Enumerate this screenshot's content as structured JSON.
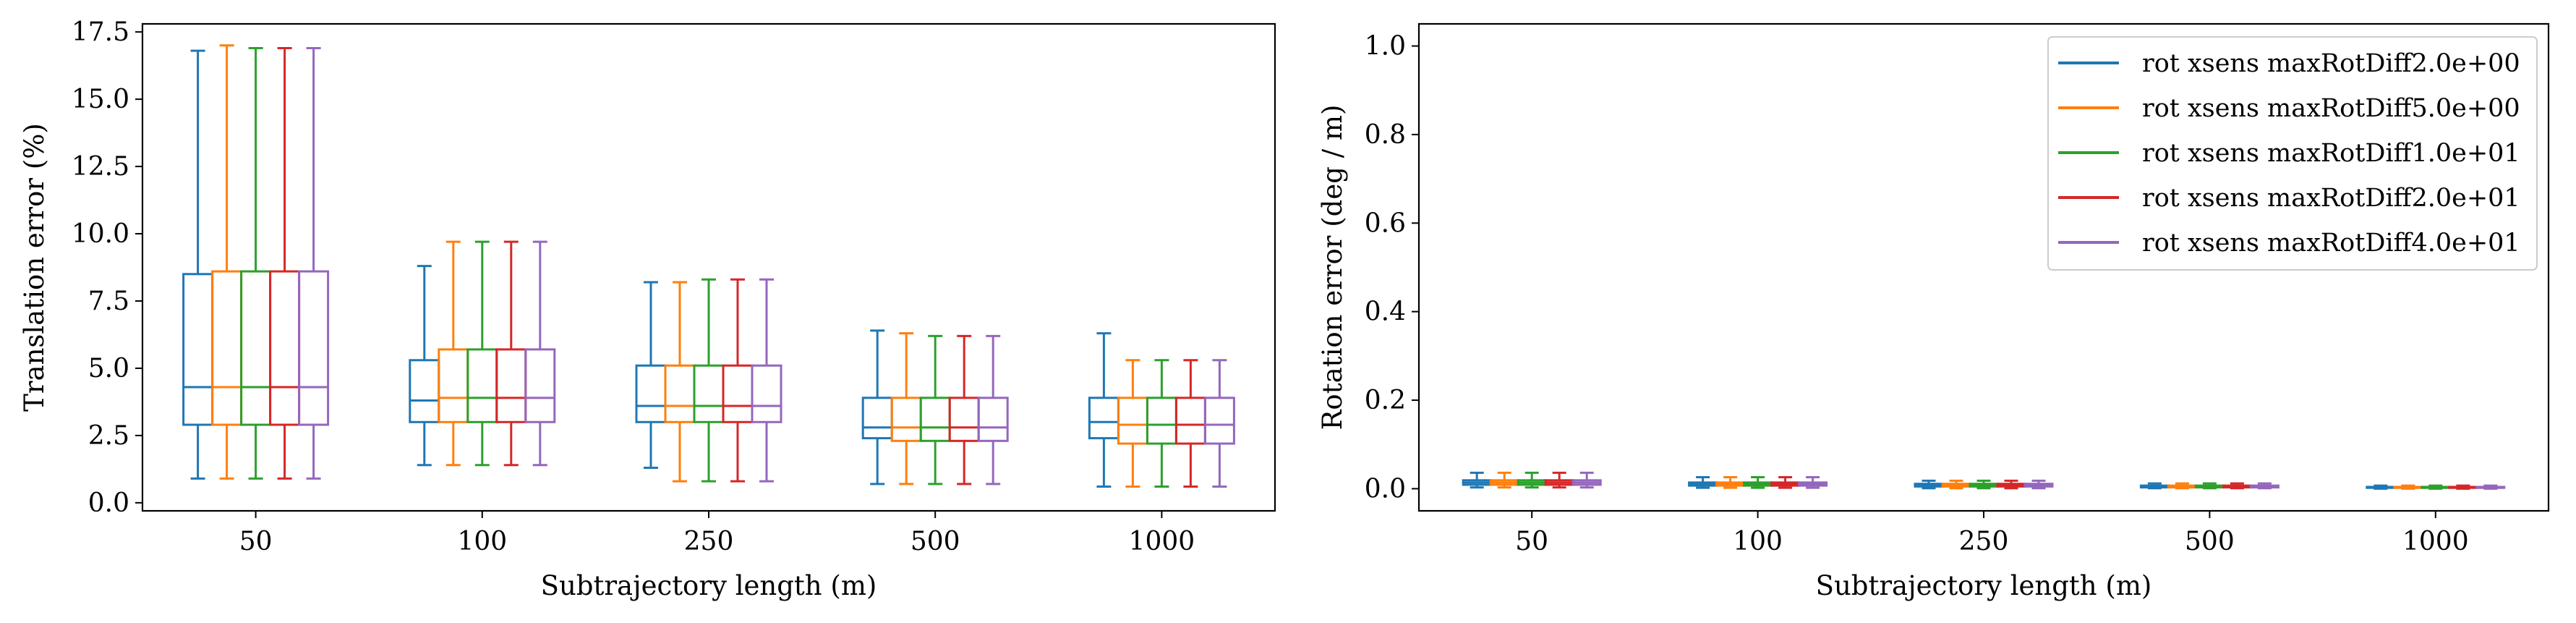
{
  "series": [
    {
      "name": "rot xsens maxRotDiff2.0e+00",
      "color": "#1f77b4"
    },
    {
      "name": "rot xsens maxRotDiff5.0e+00",
      "color": "#ff7f0e"
    },
    {
      "name": "rot xsens maxRotDiff1.0e+01",
      "color": "#2ca02c"
    },
    {
      "name": "rot xsens maxRotDiff2.0e+01",
      "color": "#d62728"
    },
    {
      "name": "rot xsens maxRotDiff4.0e+01",
      "color": "#9467bd"
    }
  ],
  "chart_data": [
    {
      "type": "box",
      "xlabel": "Subtrajectory length (m)",
      "ylabel": "Translation error (%)",
      "ylim": [
        -0.3,
        17.8
      ],
      "yticks": [
        0.0,
        2.5,
        5.0,
        7.5,
        10.0,
        12.5,
        15.0,
        17.5
      ],
      "ytick_labels": [
        "0.0",
        "2.5",
        "5.0",
        "7.5",
        "10.0",
        "12.5",
        "15.0",
        "17.5"
      ],
      "categories": [
        "50",
        "100",
        "250",
        "500",
        "1000"
      ],
      "grid": false,
      "boxes": [
        [
          [
            0.9,
            2.9,
            4.3,
            8.5,
            16.8
          ],
          [
            0.9,
            2.9,
            4.3,
            8.6,
            17.0
          ],
          [
            0.9,
            2.9,
            4.3,
            8.6,
            16.9
          ],
          [
            0.9,
            2.9,
            4.3,
            8.6,
            16.9
          ],
          [
            0.9,
            2.9,
            4.3,
            8.6,
            16.9
          ]
        ],
        [
          [
            1.4,
            3.0,
            3.8,
            5.3,
            8.8
          ],
          [
            1.4,
            3.0,
            3.9,
            5.7,
            9.7
          ],
          [
            1.4,
            3.0,
            3.9,
            5.7,
            9.7
          ],
          [
            1.4,
            3.0,
            3.9,
            5.7,
            9.7
          ],
          [
            1.4,
            3.0,
            3.9,
            5.7,
            9.7
          ]
        ],
        [
          [
            1.3,
            3.0,
            3.6,
            5.1,
            8.2
          ],
          [
            0.8,
            3.0,
            3.6,
            5.1,
            8.2
          ],
          [
            0.8,
            3.0,
            3.6,
            5.1,
            8.3
          ],
          [
            0.8,
            3.0,
            3.6,
            5.1,
            8.3
          ],
          [
            0.8,
            3.0,
            3.6,
            5.1,
            8.3
          ]
        ],
        [
          [
            0.7,
            2.4,
            2.8,
            3.9,
            6.4
          ],
          [
            0.7,
            2.3,
            2.8,
            3.9,
            6.3
          ],
          [
            0.7,
            2.3,
            2.8,
            3.9,
            6.2
          ],
          [
            0.7,
            2.3,
            2.8,
            3.9,
            6.2
          ],
          [
            0.7,
            2.3,
            2.8,
            3.9,
            6.2
          ]
        ],
        [
          [
            0.6,
            2.4,
            3.0,
            3.9,
            6.3
          ],
          [
            0.6,
            2.2,
            2.9,
            3.9,
            5.3
          ],
          [
            0.6,
            2.2,
            2.9,
            3.9,
            5.3
          ],
          [
            0.6,
            2.2,
            2.9,
            3.9,
            5.3
          ],
          [
            0.6,
            2.2,
            2.9,
            3.9,
            5.3
          ]
        ]
      ]
    },
    {
      "type": "box",
      "xlabel": "Subtrajectory length (m)",
      "ylabel": "Rotation error (deg / m)",
      "ylim": [
        -0.05,
        1.05
      ],
      "yticks": [
        0.0,
        0.2,
        0.4,
        0.6,
        0.8,
        1.0
      ],
      "ytick_labels": [
        "0.0",
        "0.2",
        "0.4",
        "0.6",
        "0.8",
        "1.0"
      ],
      "categories": [
        "50",
        "100",
        "250",
        "500",
        "1000"
      ],
      "grid": false,
      "legend_position": "top-right",
      "boxes": [
        [
          [
            0.003,
            0.009,
            0.014,
            0.019,
            0.036
          ],
          [
            0.003,
            0.009,
            0.014,
            0.019,
            0.036
          ],
          [
            0.003,
            0.009,
            0.014,
            0.019,
            0.036
          ],
          [
            0.003,
            0.009,
            0.014,
            0.019,
            0.036
          ],
          [
            0.003,
            0.009,
            0.014,
            0.019,
            0.036
          ]
        ],
        [
          [
            0.002,
            0.007,
            0.01,
            0.014,
            0.026
          ],
          [
            0.002,
            0.007,
            0.01,
            0.014,
            0.026
          ],
          [
            0.002,
            0.007,
            0.01,
            0.014,
            0.026
          ],
          [
            0.002,
            0.007,
            0.01,
            0.014,
            0.026
          ],
          [
            0.002,
            0.007,
            0.01,
            0.014,
            0.026
          ]
        ],
        [
          [
            0.001,
            0.005,
            0.008,
            0.011,
            0.018
          ],
          [
            0.001,
            0.005,
            0.008,
            0.011,
            0.018
          ],
          [
            0.001,
            0.005,
            0.008,
            0.011,
            0.018
          ],
          [
            0.001,
            0.005,
            0.008,
            0.011,
            0.018
          ],
          [
            0.001,
            0.005,
            0.008,
            0.011,
            0.018
          ]
        ],
        [
          [
            0.001,
            0.003,
            0.005,
            0.007,
            0.012
          ],
          [
            0.001,
            0.003,
            0.005,
            0.007,
            0.012
          ],
          [
            0.001,
            0.003,
            0.005,
            0.007,
            0.012
          ],
          [
            0.001,
            0.003,
            0.005,
            0.007,
            0.012
          ],
          [
            0.001,
            0.003,
            0.005,
            0.007,
            0.012
          ]
        ],
        [
          [
            0.0,
            0.002,
            0.003,
            0.004,
            0.007
          ],
          [
            0.0,
            0.002,
            0.003,
            0.004,
            0.007
          ],
          [
            0.0,
            0.002,
            0.003,
            0.004,
            0.007
          ],
          [
            0.0,
            0.002,
            0.003,
            0.004,
            0.007
          ],
          [
            0.0,
            0.002,
            0.003,
            0.004,
            0.007
          ]
        ]
      ]
    }
  ]
}
